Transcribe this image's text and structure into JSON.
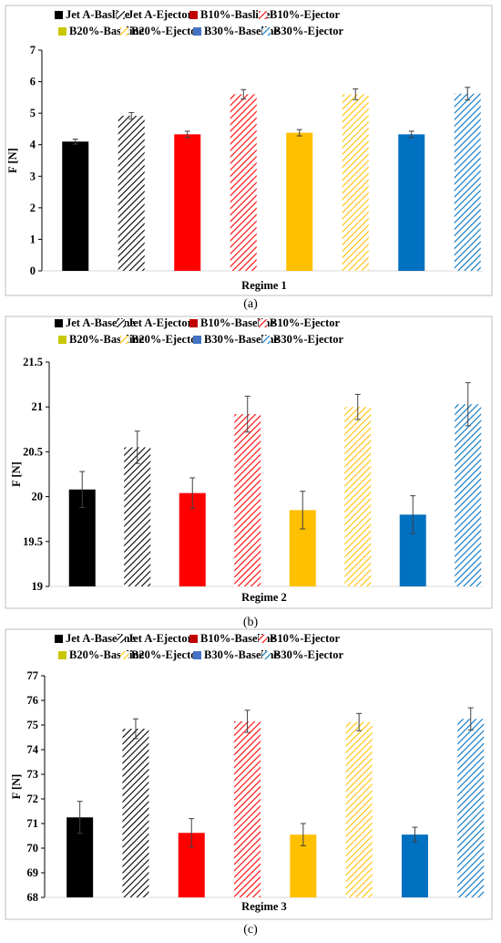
{
  "colors": {
    "jet": "#000000",
    "b10": "#ff0000",
    "b20": "#ffc000",
    "b30": "#0070c0",
    "b10_legend_solid": "#c00000",
    "b20_legend_solid": "#c8c800",
    "b30_legend_solid": "#4472c4"
  },
  "legend_labels": {
    "a": [
      "Jet A-Basline",
      "Jet A-Ejector",
      "B10%-Basline",
      "B10%-Ejector",
      "B20%-Baseline",
      "B20%-Ejector",
      "B30%-Baseline",
      "B30%-Ejector"
    ],
    "b": [
      "Jet A-Baseline",
      "Jet A-Ejector",
      "B10%-Baseline",
      "B10%-Ejector",
      "B20%-Baseline",
      "B20%-Ejector",
      "B30%-Baseline",
      "B30%-Ejector"
    ],
    "c": [
      "Jet A-Baseline",
      "Jet A-Ejector",
      "B10%-Baseline",
      "B10%-Ejector",
      "B20%-Baseline",
      "B20%-Ejector",
      "B30%-Baseline",
      "B30%-Ejector"
    ]
  },
  "captions": [
    "(a)",
    "(b)",
    "(c)"
  ],
  "chart_data": [
    {
      "type": "bar",
      "ylabel": "F [N]",
      "xlabel": "Regime 1",
      "ylim": [
        0,
        7
      ],
      "yticks": [
        "0",
        "1",
        "2",
        "3",
        "4",
        "5",
        "6",
        "7"
      ],
      "legend": "top",
      "grid": false,
      "series": [
        {
          "name": "Jet A-Basline",
          "value": 4.1,
          "error": 0.08
        },
        {
          "name": "Jet A-Ejector",
          "value": 4.92,
          "error": 0.1
        },
        {
          "name": "B10%-Basline",
          "value": 4.33,
          "error": 0.1
        },
        {
          "name": "B10%-Ejector",
          "value": 5.6,
          "error": 0.15
        },
        {
          "name": "B20%-Baseline",
          "value": 4.38,
          "error": 0.1
        },
        {
          "name": "B20%-Ejector",
          "value": 5.6,
          "error": 0.17
        },
        {
          "name": "B30%-Baseline",
          "value": 4.33,
          "error": 0.1
        },
        {
          "name": "B30%-Ejector",
          "value": 5.62,
          "error": 0.2
        }
      ]
    },
    {
      "type": "bar",
      "ylabel": "F [N]",
      "xlabel": "Regime 2",
      "ylim": [
        19,
        21.5
      ],
      "yticks": [
        "19",
        "19.5",
        "20",
        "20.5",
        "21",
        "21.5"
      ],
      "legend": "top",
      "grid": false,
      "series": [
        {
          "name": "Jet A-Baseline",
          "value": 20.08,
          "error": 0.2
        },
        {
          "name": "Jet A-Ejector",
          "value": 20.55,
          "error": 0.18
        },
        {
          "name": "B10%-Baseline",
          "value": 20.04,
          "error": 0.17
        },
        {
          "name": "B10%-Ejector",
          "value": 20.92,
          "error": 0.2
        },
        {
          "name": "B20%-Baseline",
          "value": 19.85,
          "error": 0.21
        },
        {
          "name": "B20%-Ejector",
          "value": 21.0,
          "error": 0.14
        },
        {
          "name": "B30%-Baseline",
          "value": 19.8,
          "error": 0.21
        },
        {
          "name": "B30%-Ejector",
          "value": 21.03,
          "error": 0.24
        }
      ]
    },
    {
      "type": "bar",
      "ylabel": "F [N]",
      "xlabel": "Regime 3",
      "ylim": [
        68,
        77
      ],
      "yticks": [
        "68",
        "69",
        "70",
        "71",
        "72",
        "73",
        "74",
        "75",
        "76",
        "77"
      ],
      "legend": "top",
      "grid": false,
      "series": [
        {
          "name": "Jet A-Baseline",
          "value": 71.25,
          "error": 0.65
        },
        {
          "name": "Jet A-Ejector",
          "value": 74.85,
          "error": 0.4
        },
        {
          "name": "B10%-Baseline",
          "value": 70.62,
          "error": 0.58
        },
        {
          "name": "B10%-Ejector",
          "value": 75.15,
          "error": 0.45
        },
        {
          "name": "B20%-Baseline",
          "value": 70.55,
          "error": 0.45
        },
        {
          "name": "B20%-Ejector",
          "value": 75.12,
          "error": 0.35
        },
        {
          "name": "B30%-Baseline",
          "value": 70.55,
          "error": 0.3
        },
        {
          "name": "B30%-Ejector",
          "value": 75.25,
          "error": 0.45
        }
      ]
    }
  ]
}
